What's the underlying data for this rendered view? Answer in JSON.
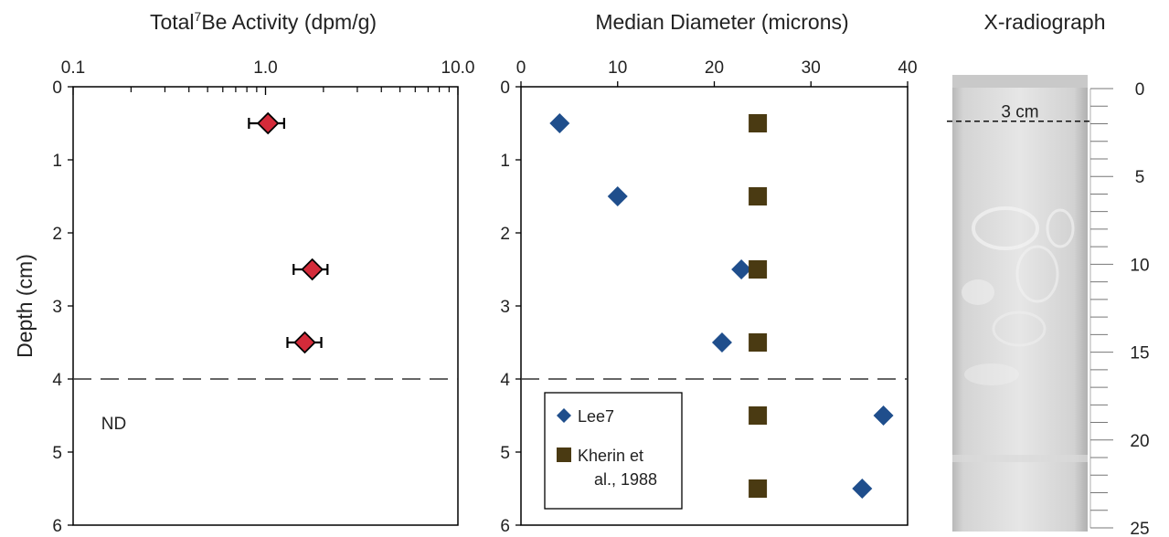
{
  "chart_data": [
    {
      "type": "scatter",
      "title": "Total",
      "title_superscript": "7",
      "title_rest": "Be Activity (dpm/g)",
      "ylabel": "Depth (cm)",
      "x_scale": "log",
      "xlim": [
        0.1,
        10.0
      ],
      "ylim": [
        0,
        6
      ],
      "y_inverted": true,
      "x_ticks": [
        "0.1",
        "1.0",
        "10.0"
      ],
      "y_ticks": [
        "0",
        "1",
        "2",
        "3",
        "4",
        "5",
        "6"
      ],
      "series": [
        {
          "color": "#d42b3a",
          "marker": "diamond",
          "points": [
            {
              "x": 1.03,
              "y": 0.5,
              "err_low": 0.82,
              "err_high": 1.25
            },
            {
              "x": 1.75,
              "y": 2.5,
              "err_low": 1.4,
              "err_high": 2.1
            },
            {
              "x": 1.6,
              "y": 3.5,
              "err_low": 1.3,
              "err_high": 1.95
            }
          ]
        }
      ],
      "reference_line_depth": 4,
      "annotation": {
        "text": "ND",
        "x": 0.14,
        "y": 4.6
      }
    },
    {
      "type": "scatter",
      "title": "Median Diameter (microns)",
      "xlim": [
        0,
        40
      ],
      "ylim": [
        0,
        6
      ],
      "y_inverted": true,
      "x_ticks": [
        "0",
        "10",
        "20",
        "30",
        "40"
      ],
      "y_ticks": [
        "0",
        "1",
        "2",
        "3",
        "4",
        "5",
        "6"
      ],
      "series": [
        {
          "name": "Lee7",
          "color": "#1f4e8c",
          "marker": "diamond",
          "points": [
            {
              "x": 4,
              "y": 0.5
            },
            {
              "x": 10,
              "y": 1.5
            },
            {
              "x": 22.8,
              "y": 2.5
            },
            {
              "x": 20.8,
              "y": 3.5
            },
            {
              "x": 37.5,
              "y": 4.5
            },
            {
              "x": 35.3,
              "y": 5.5
            }
          ]
        },
        {
          "name": "Kherin et al., 1988",
          "legend_lines": [
            "Kherin et",
            "al., 1988"
          ],
          "color": "#4a3a12",
          "marker": "square",
          "points": [
            {
              "x": 24.5,
              "y": 0.5
            },
            {
              "x": 24.5,
              "y": 1.5
            },
            {
              "x": 24.5,
              "y": 2.5
            },
            {
              "x": 24.5,
              "y": 3.5
            },
            {
              "x": 24.5,
              "y": 4.5
            },
            {
              "x": 24.5,
              "y": 5.5
            }
          ]
        }
      ],
      "reference_line_depth": 4,
      "legend_position": "bottom-left"
    },
    {
      "type": "image",
      "title": "X-radiograph",
      "scale_ticks": [
        "0",
        "5",
        "10",
        "15",
        "20",
        "25"
      ],
      "scale_range": [
        0,
        25
      ],
      "marker_line_depth": 3,
      "marker_label": "3 cm"
    }
  ]
}
